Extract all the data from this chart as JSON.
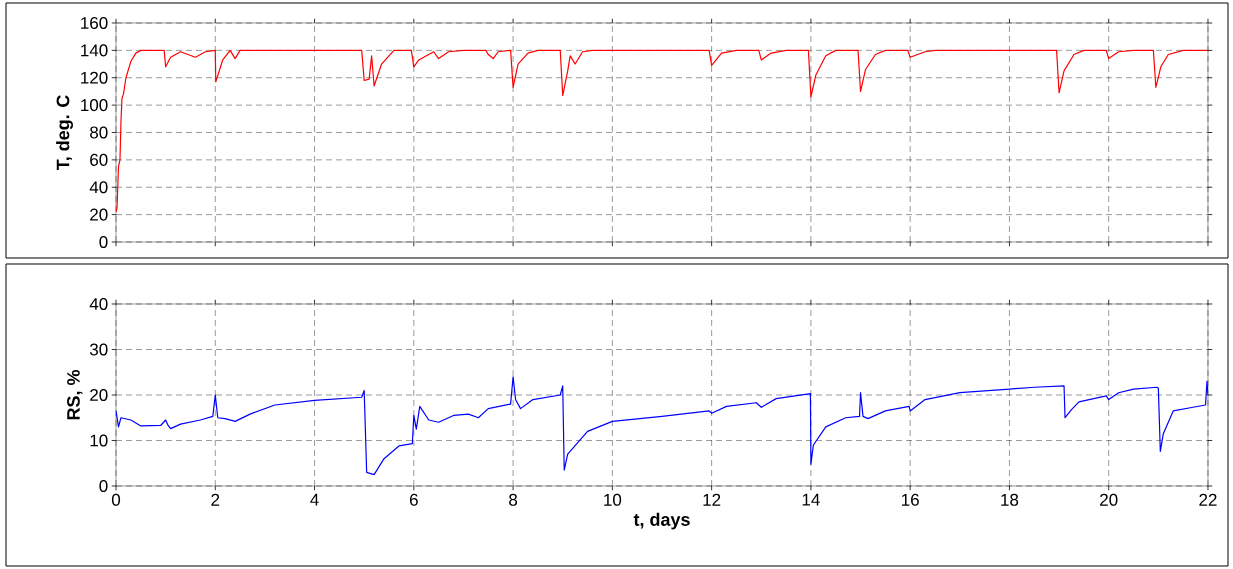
{
  "chart_data": [
    {
      "type": "line",
      "ylabel": "T, deg. C",
      "xlim": [
        0,
        22
      ],
      "xticks": [
        0,
        2,
        4,
        6,
        8,
        10,
        12,
        14,
        16,
        18,
        20,
        22
      ],
      "ylim": [
        0,
        160
      ],
      "yticks": [
        0,
        20,
        40,
        60,
        80,
        100,
        120,
        140,
        160
      ],
      "grid": true,
      "tick_labels": "y",
      "series": [
        {
          "color": "#ff0000",
          "x": [
            0,
            0.02,
            0.05,
            0.08,
            0.1,
            0.12,
            0.15,
            0.2,
            0.3,
            0.4,
            0.5,
            0.97,
            1.0,
            1.1,
            1.3,
            1.6,
            1.8,
            2.0,
            2.01,
            2.15,
            2.3,
            2.4,
            2.5,
            4.95,
            5.0,
            5.1,
            5.15,
            5.2,
            5.35,
            5.6,
            5.95,
            6.0,
            6.1,
            6.4,
            6.5,
            6.7,
            7.0,
            7.45,
            7.5,
            7.6,
            7.7,
            7.95,
            8.0,
            8.1,
            8.3,
            8.5,
            8.95,
            9.0,
            9.1,
            9.15,
            9.25,
            9.4,
            9.6,
            11.95,
            12.0,
            12.2,
            12.5,
            12.95,
            13.0,
            13.2,
            13.5,
            13.95,
            14.0,
            14.1,
            14.3,
            14.5,
            14.95,
            15.0,
            15.1,
            15.3,
            15.5,
            15.95,
            16.0,
            16.3,
            16.5,
            18.95,
            19.0,
            19.1,
            19.3,
            19.5,
            19.95,
            20.0,
            20.2,
            20.5,
            20.9,
            20.95,
            21.05,
            21.2,
            21.5,
            22.0
          ],
          "values": [
            22,
            25,
            55,
            60,
            88,
            105,
            108,
            120,
            132,
            138,
            140,
            140,
            128,
            135,
            139,
            135,
            139,
            140,
            117,
            133,
            140,
            134,
            140,
            140,
            118,
            119,
            136,
            114,
            130,
            140,
            140,
            128,
            133,
            139,
            134,
            139,
            140,
            140,
            137,
            134,
            139,
            140,
            113,
            130,
            138,
            140,
            140,
            107,
            125,
            136,
            130,
            139,
            140,
            140,
            129,
            138,
            140,
            140,
            133,
            138,
            140,
            140,
            106,
            122,
            136,
            140,
            140,
            110,
            126,
            137,
            140,
            140,
            135,
            139,
            140,
            140,
            109,
            125,
            137,
            140,
            140,
            134,
            139,
            140,
            140,
            113,
            128,
            137,
            140,
            140
          ]
        }
      ]
    },
    {
      "type": "line",
      "ylabel": "RS, %",
      "xlabel": "t, days",
      "xlim": [
        0,
        22
      ],
      "xticks": [
        0,
        2,
        4,
        6,
        8,
        10,
        12,
        14,
        16,
        18,
        20,
        22
      ],
      "ylim": [
        0,
        40
      ],
      "yticks": [
        0,
        10,
        20,
        30,
        40
      ],
      "grid": true,
      "series": [
        {
          "color": "#0000ff",
          "x": [
            0,
            0.05,
            0.1,
            0.3,
            0.5,
            0.9,
            1.0,
            1.05,
            1.1,
            1.3,
            1.7,
            1.95,
            2.0,
            2.05,
            2.2,
            2.4,
            2.7,
            3.2,
            4.0,
            4.95,
            5.0,
            5.05,
            5.2,
            5.4,
            5.7,
            5.97,
            6.0,
            6.05,
            6.12,
            6.3,
            6.5,
            6.8,
            7.1,
            7.3,
            7.5,
            7.95,
            8.0,
            8.05,
            8.15,
            8.4,
            8.95,
            9.0,
            9.03,
            9.1,
            9.5,
            10.0,
            11.0,
            11.95,
            12.0,
            12.3,
            12.9,
            13.0,
            13.3,
            13.99,
            14.0,
            14.05,
            14.3,
            14.7,
            14.98,
            15.0,
            15.05,
            15.15,
            15.5,
            15.98,
            16.0,
            16.3,
            17.0,
            18.0,
            18.5,
            19.1,
            19.12,
            19.25,
            19.4,
            19.95,
            20.0,
            20.2,
            20.5,
            20.97,
            21.0,
            21.04,
            21.1,
            21.3,
            21.7,
            21.95,
            21.98,
            22.0
          ],
          "values": [
            16.5,
            13,
            15,
            14.5,
            13.2,
            13.3,
            14.5,
            13.3,
            12.6,
            13.6,
            14.5,
            15.3,
            20,
            15,
            14.8,
            14.2,
            15.8,
            17.8,
            18.8,
            19.5,
            21,
            3,
            2.5,
            6,
            8.8,
            9.3,
            15.5,
            12.5,
            17.5,
            14.5,
            14,
            15.5,
            15.8,
            15,
            17,
            18,
            24,
            19,
            17,
            19,
            20,
            22,
            3.5,
            7,
            12,
            14.2,
            15.3,
            16.5,
            16,
            17.5,
            18.3,
            17.3,
            19.2,
            20.3,
            4.8,
            9,
            13,
            15,
            15.3,
            20.5,
            15.3,
            14.8,
            16.5,
            17.5,
            16.5,
            19,
            20.5,
            21.3,
            21.7,
            22,
            15,
            16.8,
            18.5,
            19.8,
            19,
            20.5,
            21.3,
            21.7,
            21.5,
            7.6,
            11.5,
            16.5,
            17.3,
            17.8,
            23,
            20
          ]
        }
      ]
    }
  ]
}
